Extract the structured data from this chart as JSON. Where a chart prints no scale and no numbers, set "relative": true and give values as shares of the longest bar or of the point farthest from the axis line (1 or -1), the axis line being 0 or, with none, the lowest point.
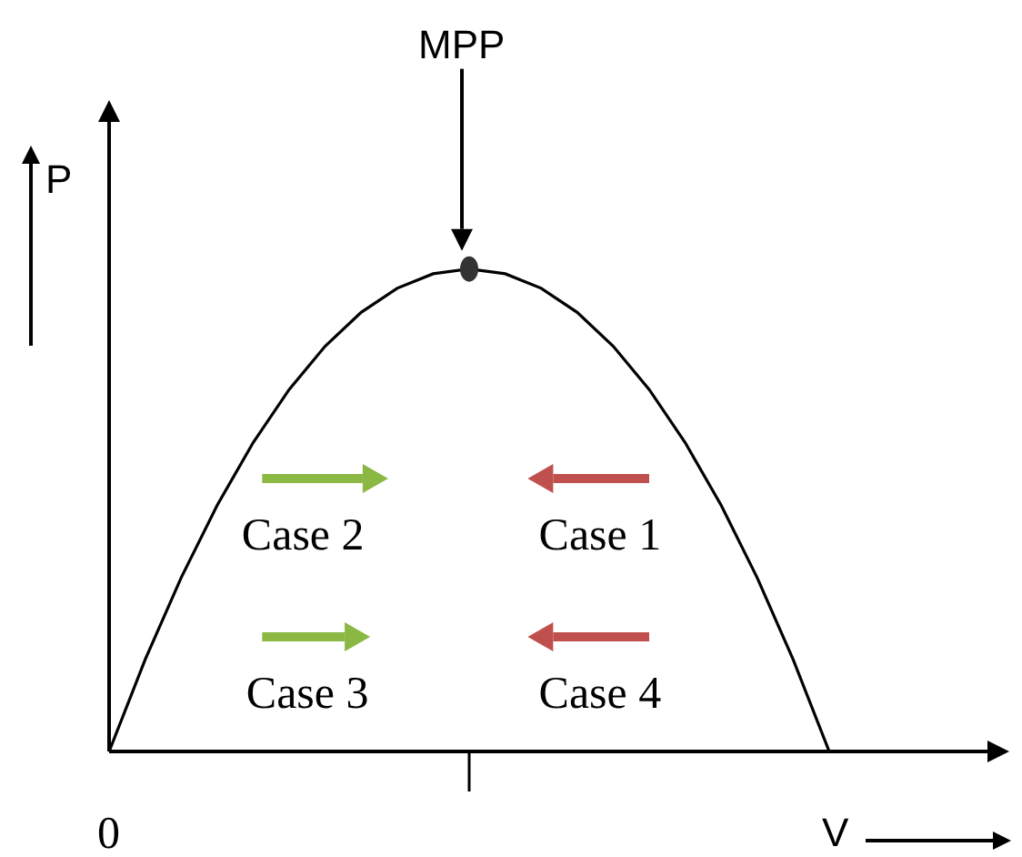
{
  "chart_data": {
    "type": "line",
    "relative": true,
    "xlabel": "V",
    "ylabel": "P",
    "color": "#000000",
    "categories": [
      null,
      null,
      null,
      null,
      null,
      null,
      null,
      null,
      null,
      null,
      null,
      null,
      null,
      null,
      null,
      null,
      null,
      null,
      null,
      null,
      null,
      null,
      null,
      null,
      null,
      null
    ],
    "values": [
      0,
      0.19,
      0.36,
      0.51,
      0.64,
      0.75,
      0.84,
      0.91,
      0.96,
      0.99,
      1,
      0.99,
      0.96,
      0.91,
      0.84,
      0.75,
      0.64,
      0.51,
      0.36,
      0.19,
      0,
      null,
      null,
      null,
      null,
      null
    ],
    "annotations": [
      "MPP",
      "Case 2",
      "Case 1",
      "Case 3",
      "Case 4",
      "0"
    ]
  }
}
